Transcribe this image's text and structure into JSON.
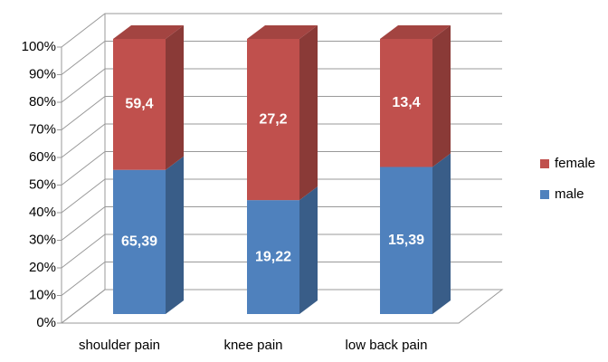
{
  "chart_data": {
    "type": "bar",
    "stacking": "percent",
    "categories": [
      "shoulder pain",
      "knee pain",
      "low back pain"
    ],
    "series": [
      {
        "name": "male",
        "color": "#4f81bd",
        "values": [
          65.39,
          19.22,
          15.39
        ],
        "value_labels": [
          "65,39",
          "19,22",
          "15,39"
        ]
      },
      {
        "name": "female",
        "color": "#c0504d",
        "values": [
          59.4,
          27.2,
          13.4
        ],
        "value_labels": [
          "59,4",
          "27,2",
          "13,4"
        ]
      }
    ],
    "ylim": [
      0,
      100
    ],
    "yticks": [
      {
        "value": 0,
        "label": "0%"
      },
      {
        "value": 10,
        "label": "10%"
      },
      {
        "value": 20,
        "label": "20%"
      },
      {
        "value": 30,
        "label": "30%"
      },
      {
        "value": 40,
        "label": "40%"
      },
      {
        "value": 50,
        "label": "50%"
      },
      {
        "value": 60,
        "label": "60%"
      },
      {
        "value": 70,
        "label": "70%"
      },
      {
        "value": 80,
        "label": "80%"
      },
      {
        "value": 90,
        "label": "90%"
      },
      {
        "value": 100,
        "label": "100%"
      }
    ],
    "grid": true,
    "legend": "right"
  }
}
